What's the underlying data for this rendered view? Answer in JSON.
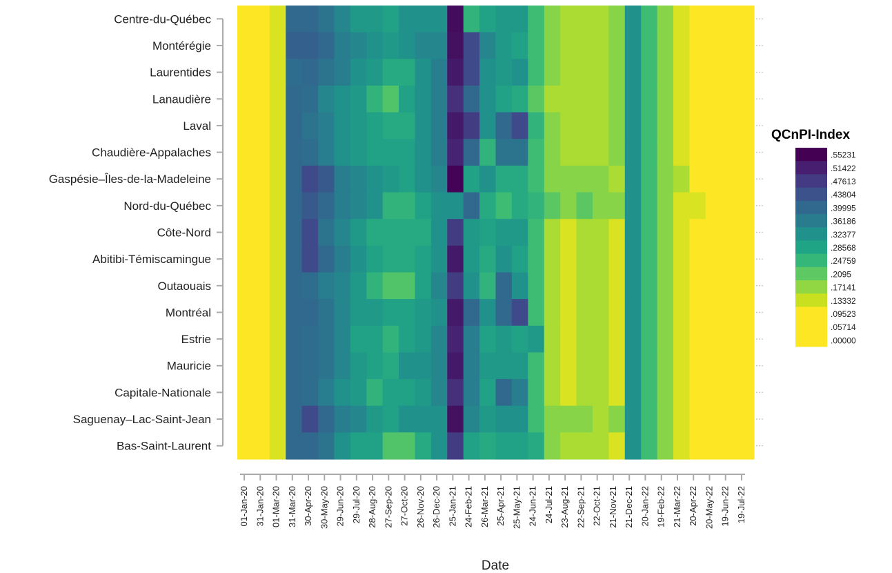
{
  "chart_data": {
    "type": "heatmap",
    "xlabel": "Date",
    "legend": {
      "title": "QCnPI-Index",
      "placement": "right",
      "levels": [
        ".55231",
        ".51422",
        ".47613",
        ".43804",
        ".39995",
        ".36186",
        ".32377",
        ".28568",
        ".24759",
        ".2095",
        ".17141",
        ".13332",
        ".09523",
        ".05714",
        ".00000"
      ],
      "colors": [
        "#440154",
        "#481f70",
        "#443983",
        "#3b528b",
        "#31688e",
        "#287c8e",
        "#21918c",
        "#20a486",
        "#35b779",
        "#5ec962",
        "#90d743",
        "#c8e020",
        "#fde725",
        "#fde725",
        "#fde725"
      ]
    },
    "x_tick_labels": [
      "01-Jan-20",
      "31-Jan-20",
      "01-Mar-20",
      "31-Mar-20",
      "30-Apr-20",
      "30-May-20",
      "29-Jun-20",
      "29-Jul-20",
      "28-Aug-20",
      "27-Sep-20",
      "27-Oct-20",
      "26-Nov-20",
      "26-Dec-20",
      "25-Jan-21",
      "24-Feb-21",
      "26-Mar-21",
      "25-Apr-21",
      "25-May-21",
      "24-Jun-21",
      "24-Jul-21",
      "23-Aug-21",
      "22-Sep-21",
      "22-Oct-21",
      "21-Nov-21",
      "21-Dec-21",
      "20-Jan-22",
      "19-Feb-22",
      "21-Mar-22",
      "20-Apr-22",
      "20-May-22",
      "19-Jun-22",
      "19-Jul-22"
    ],
    "y_categories": [
      "Centre-du-Québec",
      "Montérégie",
      "Laurentides",
      "Lanaudière",
      "Laval",
      "Chaudière-Appalaches",
      "Gaspésie–Îles-de-la-Madeleine",
      "Nord-du-Québec",
      "Côte-Nord",
      "Abitibi-Témiscamingue",
      "Outaouais",
      "Montréal",
      "Estrie",
      "Mauricie",
      "Capitale-Nationale",
      "Saguenay–Lac-Saint-Jean",
      "Bas-Saint-Laurent"
    ],
    "values": [
      [
        0,
        0,
        0.06,
        0.38,
        0.38,
        0.36,
        0.32,
        0.28,
        0.28,
        0.26,
        0.3,
        0.3,
        0.3,
        0.53,
        0.22,
        0.26,
        0.28,
        0.28,
        0.2,
        0.13,
        0.1,
        0.1,
        0.1,
        0.13,
        0.3,
        0.2,
        0.13,
        0.06,
        0,
        0,
        0,
        0
      ],
      [
        0,
        0,
        0.06,
        0.39,
        0.39,
        0.38,
        0.34,
        0.32,
        0.3,
        0.28,
        0.3,
        0.32,
        0.32,
        0.52,
        0.42,
        0.32,
        0.28,
        0.26,
        0.2,
        0.13,
        0.1,
        0.1,
        0.1,
        0.13,
        0.3,
        0.2,
        0.13,
        0.06,
        0,
        0,
        0,
        0
      ],
      [
        0,
        0,
        0.06,
        0.37,
        0.38,
        0.36,
        0.34,
        0.3,
        0.28,
        0.24,
        0.24,
        0.3,
        0.34,
        0.5,
        0.42,
        0.3,
        0.28,
        0.3,
        0.2,
        0.13,
        0.1,
        0.1,
        0.1,
        0.13,
        0.3,
        0.2,
        0.13,
        0.06,
        0,
        0,
        0,
        0
      ],
      [
        0,
        0,
        0.06,
        0.38,
        0.37,
        0.32,
        0.3,
        0.28,
        0.22,
        0.18,
        0.26,
        0.3,
        0.34,
        0.46,
        0.38,
        0.3,
        0.26,
        0.24,
        0.17,
        0.1,
        0.1,
        0.1,
        0.1,
        0.13,
        0.3,
        0.2,
        0.13,
        0.06,
        0,
        0,
        0,
        0
      ],
      [
        0,
        0,
        0.06,
        0.38,
        0.36,
        0.34,
        0.3,
        0.28,
        0.26,
        0.24,
        0.24,
        0.3,
        0.34,
        0.5,
        0.44,
        0.3,
        0.38,
        0.42,
        0.22,
        0.13,
        0.1,
        0.1,
        0.1,
        0.13,
        0.3,
        0.2,
        0.13,
        0.06,
        0,
        0,
        0,
        0
      ],
      [
        0,
        0,
        0.06,
        0.38,
        0.37,
        0.34,
        0.3,
        0.28,
        0.26,
        0.26,
        0.26,
        0.3,
        0.34,
        0.48,
        0.38,
        0.22,
        0.36,
        0.36,
        0.2,
        0.13,
        0.1,
        0.1,
        0.1,
        0.13,
        0.3,
        0.2,
        0.13,
        0.06,
        0,
        0,
        0,
        0
      ],
      [
        0,
        0,
        0.06,
        0.38,
        0.42,
        0.4,
        0.34,
        0.32,
        0.3,
        0.28,
        0.26,
        0.3,
        0.32,
        0.55,
        0.26,
        0.3,
        0.24,
        0.24,
        0.2,
        0.13,
        0.13,
        0.13,
        0.13,
        0.1,
        0.3,
        0.2,
        0.13,
        0.1,
        0,
        0,
        0,
        0
      ],
      [
        0,
        0,
        0.06,
        0.38,
        0.4,
        0.38,
        0.34,
        0.32,
        0.3,
        0.22,
        0.22,
        0.26,
        0.3,
        0.3,
        0.38,
        0.24,
        0.2,
        0.24,
        0.22,
        0.17,
        0.13,
        0.17,
        0.13,
        0.13,
        0.3,
        0.2,
        0.13,
        0.06,
        0.06,
        0,
        0,
        0
      ],
      [
        0,
        0,
        0.06,
        0.38,
        0.42,
        0.36,
        0.32,
        0.28,
        0.24,
        0.24,
        0.24,
        0.24,
        0.3,
        0.44,
        0.28,
        0.26,
        0.28,
        0.28,
        0.2,
        0.1,
        0.06,
        0.1,
        0.1,
        0.06,
        0.3,
        0.2,
        0.13,
        0.06,
        0,
        0,
        0,
        0
      ],
      [
        0,
        0,
        0.06,
        0.38,
        0.42,
        0.38,
        0.34,
        0.3,
        0.26,
        0.24,
        0.24,
        0.26,
        0.3,
        0.5,
        0.28,
        0.24,
        0.3,
        0.26,
        0.2,
        0.1,
        0.06,
        0.1,
        0.1,
        0.06,
        0.3,
        0.2,
        0.13,
        0.06,
        0,
        0,
        0,
        0
      ],
      [
        0,
        0,
        0.06,
        0.38,
        0.37,
        0.34,
        0.32,
        0.28,
        0.22,
        0.18,
        0.18,
        0.26,
        0.32,
        0.44,
        0.3,
        0.22,
        0.38,
        0.3,
        0.2,
        0.1,
        0.06,
        0.1,
        0.1,
        0.06,
        0.3,
        0.2,
        0.13,
        0.06,
        0,
        0,
        0,
        0
      ],
      [
        0,
        0,
        0.06,
        0.38,
        0.38,
        0.36,
        0.32,
        0.28,
        0.28,
        0.26,
        0.26,
        0.28,
        0.3,
        0.5,
        0.38,
        0.3,
        0.38,
        0.42,
        0.2,
        0.1,
        0.06,
        0.1,
        0.1,
        0.06,
        0.3,
        0.2,
        0.13,
        0.06,
        0,
        0,
        0,
        0
      ],
      [
        0,
        0,
        0.06,
        0.38,
        0.37,
        0.36,
        0.32,
        0.26,
        0.26,
        0.22,
        0.26,
        0.28,
        0.32,
        0.48,
        0.34,
        0.26,
        0.28,
        0.26,
        0.28,
        0.1,
        0.06,
        0.1,
        0.1,
        0.06,
        0.3,
        0.2,
        0.13,
        0.06,
        0,
        0,
        0,
        0
      ],
      [
        0,
        0,
        0.06,
        0.38,
        0.37,
        0.36,
        0.32,
        0.28,
        0.26,
        0.24,
        0.3,
        0.3,
        0.32,
        0.5,
        0.34,
        0.28,
        0.28,
        0.28,
        0.2,
        0.1,
        0.06,
        0.1,
        0.1,
        0.06,
        0.3,
        0.2,
        0.13,
        0.06,
        0,
        0,
        0,
        0
      ],
      [
        0,
        0,
        0.06,
        0.38,
        0.37,
        0.34,
        0.3,
        0.28,
        0.22,
        0.26,
        0.26,
        0.28,
        0.32,
        0.46,
        0.34,
        0.26,
        0.38,
        0.34,
        0.2,
        0.1,
        0.06,
        0.1,
        0.1,
        0.06,
        0.3,
        0.2,
        0.13,
        0.06,
        0,
        0,
        0,
        0
      ],
      [
        0,
        0,
        0.06,
        0.38,
        0.42,
        0.38,
        0.34,
        0.32,
        0.28,
        0.26,
        0.3,
        0.3,
        0.3,
        0.52,
        0.32,
        0.28,
        0.3,
        0.3,
        0.2,
        0.13,
        0.13,
        0.13,
        0.1,
        0.13,
        0.3,
        0.2,
        0.13,
        0.06,
        0,
        0,
        0,
        0
      ],
      [
        0,
        0,
        0.06,
        0.38,
        0.38,
        0.36,
        0.3,
        0.26,
        0.26,
        0.18,
        0.18,
        0.24,
        0.3,
        0.44,
        0.26,
        0.24,
        0.26,
        0.26,
        0.24,
        0.13,
        0.1,
        0.1,
        0.1,
        0.06,
        0.3,
        0.2,
        0.13,
        0.06,
        0,
        0,
        0,
        0
      ]
    ]
  }
}
